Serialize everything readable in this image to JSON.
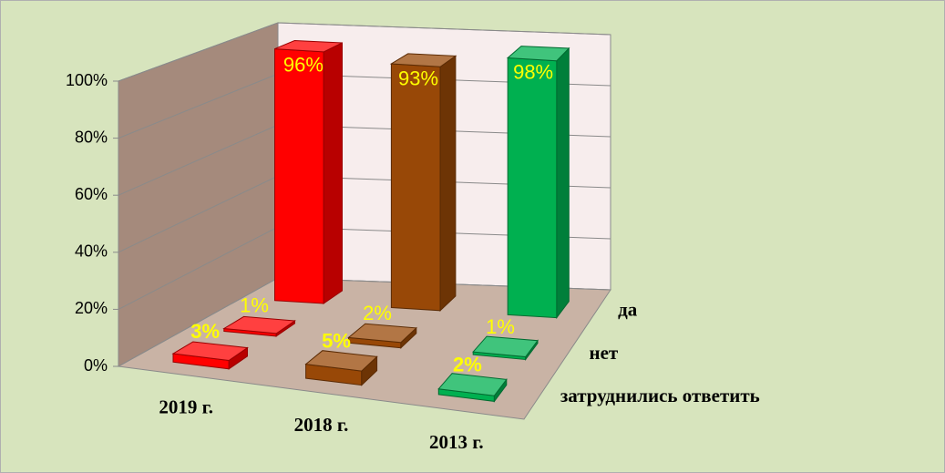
{
  "chart_data": {
    "type": "bar3d",
    "categories": [
      "2019 г.",
      "2018 г.",
      "2013 г."
    ],
    "colors": [
      "#ff0000",
      "#984807",
      "#00b050"
    ],
    "series": [
      {
        "name": "да",
        "values": [
          96,
          93,
          98
        ],
        "value_labels": [
          "96%",
          "93%",
          "98%"
        ]
      },
      {
        "name": "нет",
        "values": [
          1,
          2,
          1
        ],
        "value_labels": [
          "1%",
          "2%",
          "1%"
        ]
      },
      {
        "name": "затруднились ответить",
        "values": [
          3,
          5,
          2
        ],
        "value_labels": [
          "3%",
          "5%",
          "2%"
        ]
      }
    ],
    "ylim": [
      0,
      100
    ],
    "yticks": [
      {
        "value": 0,
        "label": "0%"
      },
      {
        "value": 20,
        "label": "20%"
      },
      {
        "value": 40,
        "label": "40%"
      },
      {
        "value": 60,
        "label": "60%"
      },
      {
        "value": 80,
        "label": "80%"
      },
      {
        "value": 100,
        "label": "100%"
      }
    ],
    "grid": true
  }
}
